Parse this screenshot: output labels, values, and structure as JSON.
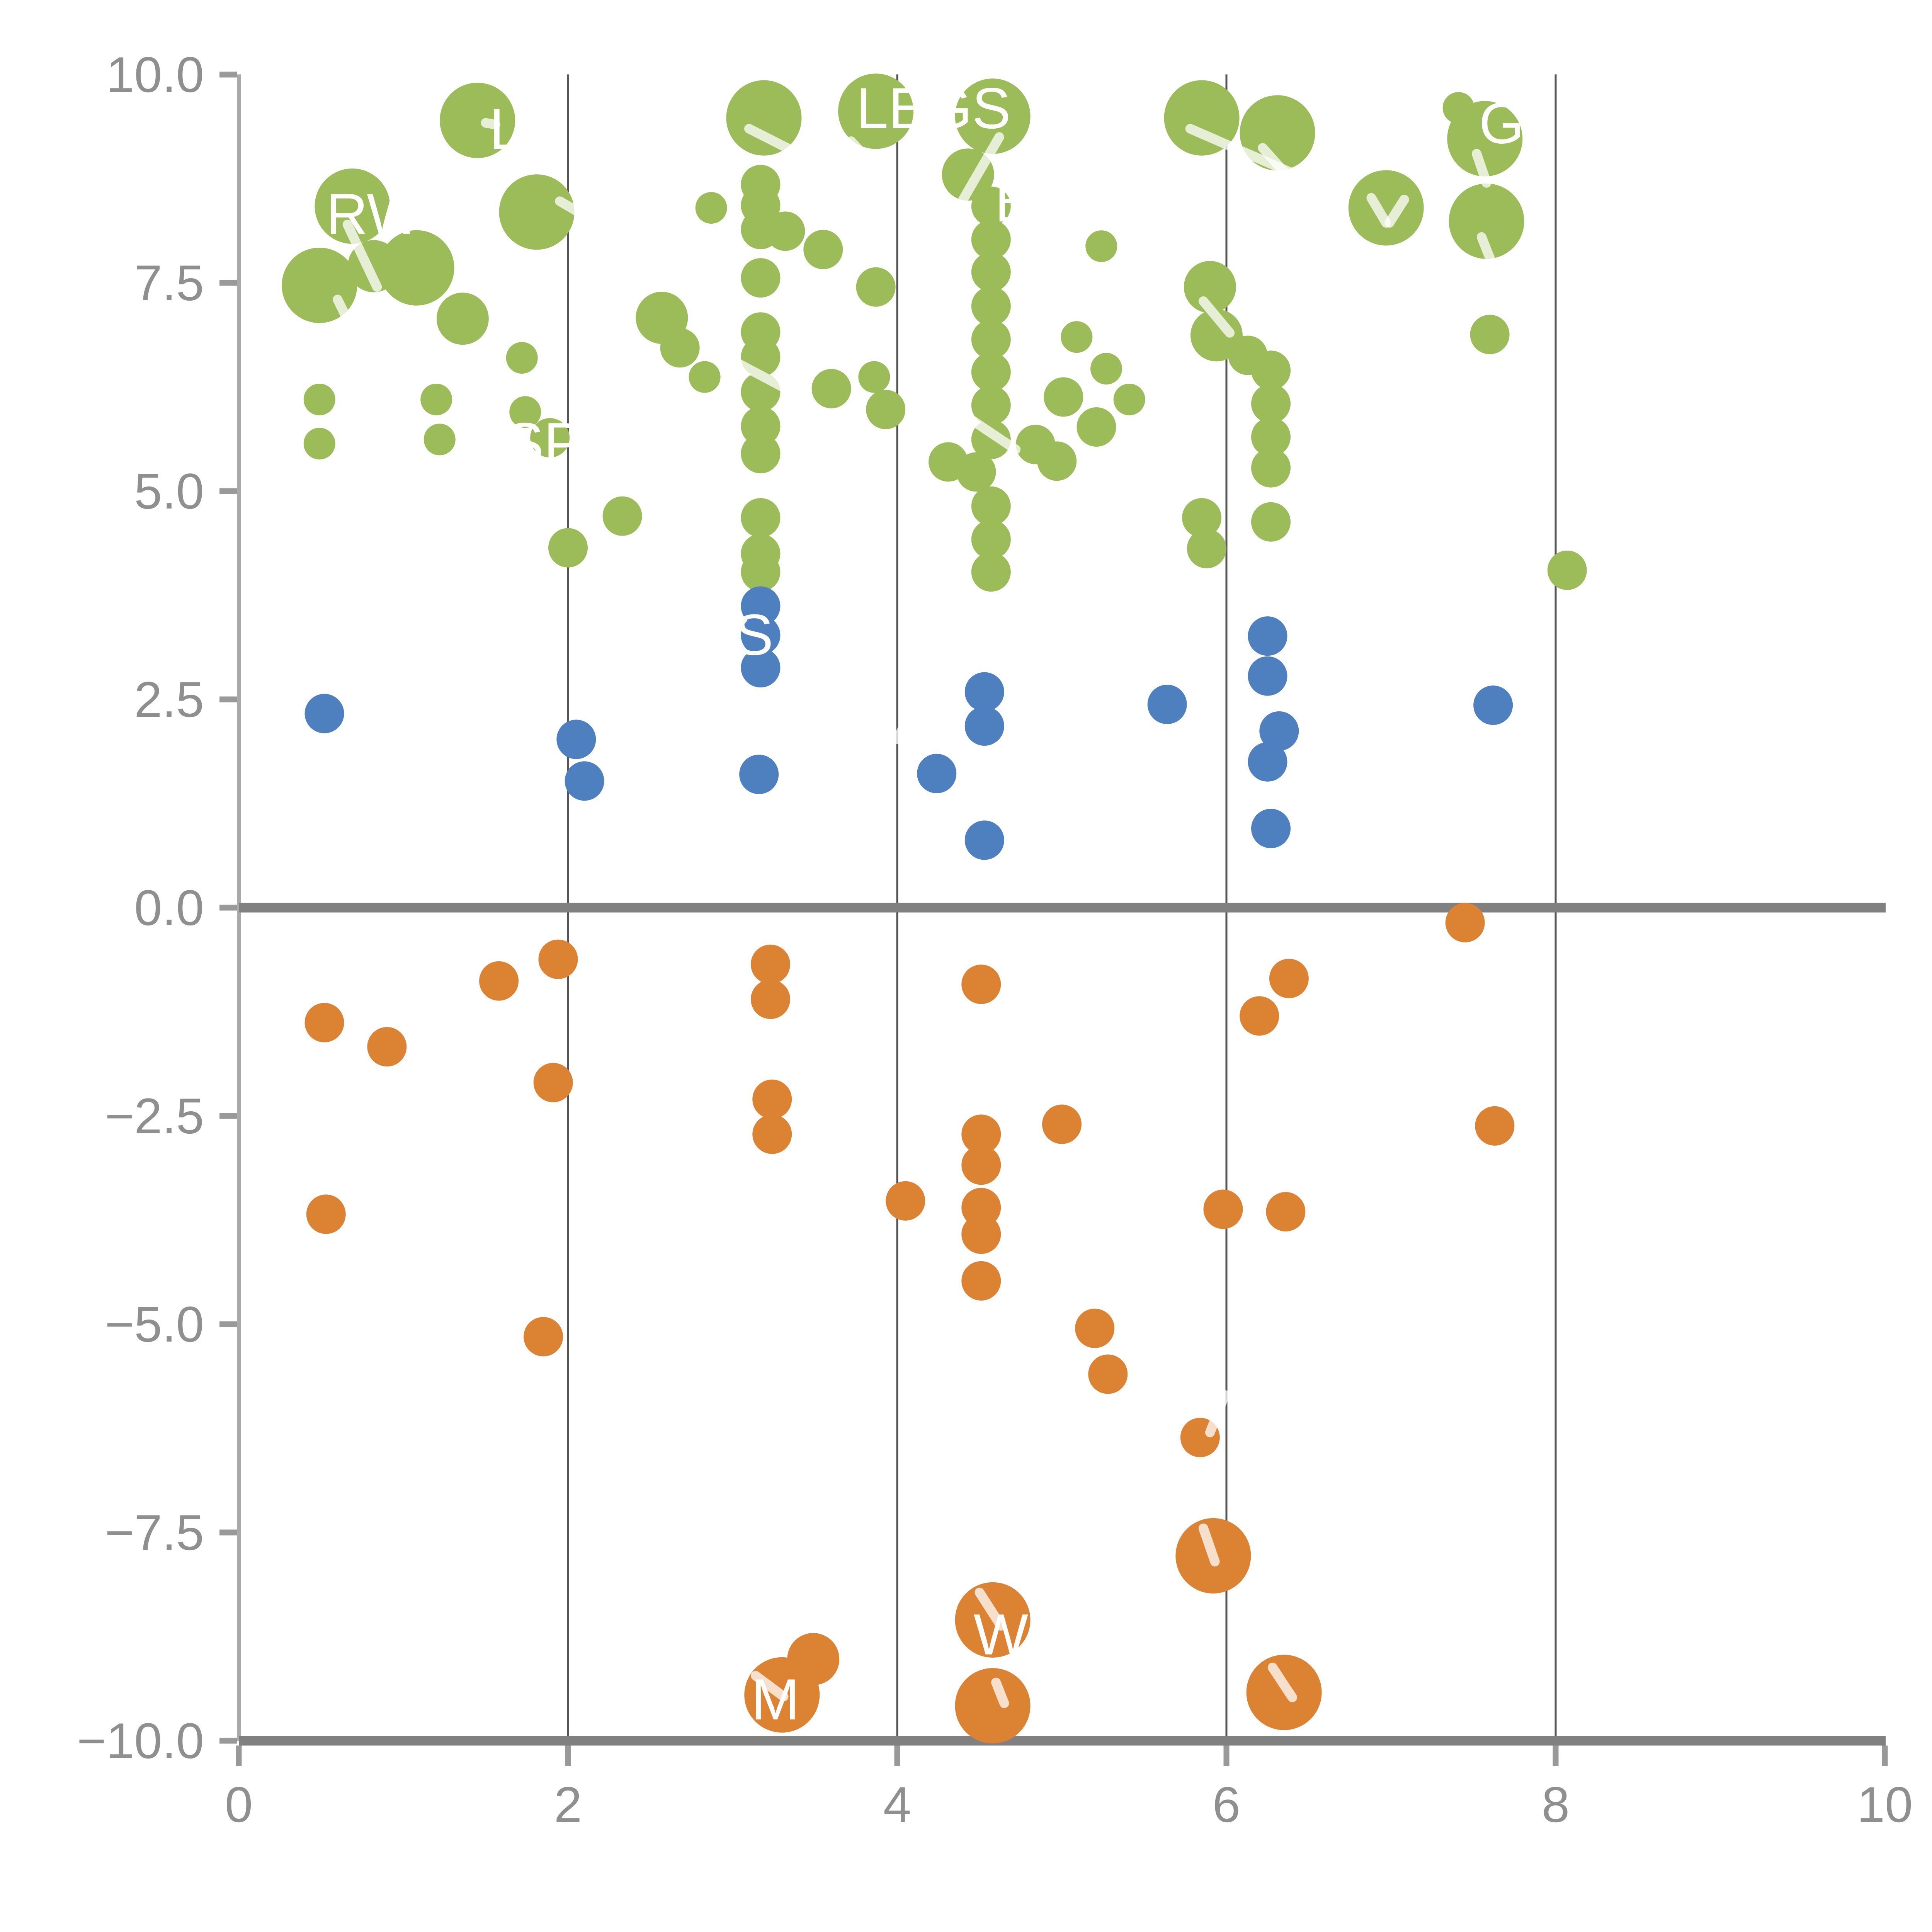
{
  "chart_data": {
    "type": "scatter",
    "title": "",
    "xlabel": "",
    "ylabel": "",
    "xlim": [
      0,
      10
    ],
    "ylim": [
      -10,
      10
    ],
    "x_ticks": [
      "0",
      "2",
      "4",
      "6",
      "8",
      "10"
    ],
    "x_tick_values": [
      0,
      2,
      4,
      6,
      8,
      10
    ],
    "y_ticks": [
      "10.0",
      "7.5",
      "5.0",
      "2.5",
      "0.0",
      "−2.5",
      "−5.0",
      "−7.5",
      "−10.0"
    ],
    "y_tick_values": [
      10.0,
      7.5,
      5.0,
      2.5,
      0.0,
      -2.5,
      -5.0,
      -7.5,
      -10.0
    ],
    "grid_x_values": [
      2,
      4,
      6,
      8
    ],
    "zero_line_y": 0,
    "legend_position": "none",
    "marker_radius": {
      "s": 8.2,
      "m": 10.2,
      "l": 13.5,
      "xl": 19.5
    },
    "series": [
      {
        "name": "green",
        "color": "#9CBB59",
        "points": [
          [
            1.45,
            9.45,
            "xl"
          ],
          [
            3.19,
            9.48,
            "xl"
          ],
          [
            3.87,
            9.56,
            "xl"
          ],
          [
            4.58,
            9.5,
            "xl"
          ],
          [
            5.85,
            9.48,
            "xl"
          ],
          [
            6.31,
            9.3,
            "xl"
          ],
          [
            7.41,
            9.6,
            "s"
          ],
          [
            7.57,
            9.23,
            "xl"
          ],
          [
            0.69,
            8.42,
            "xl"
          ],
          [
            1.81,
            8.35,
            "xl"
          ],
          [
            2.87,
            8.4,
            "s"
          ],
          [
            3.32,
            8.12,
            "m"
          ],
          [
            3.55,
            7.9,
            "m"
          ],
          [
            4.43,
            8.8,
            "l"
          ],
          [
            5.24,
            7.94,
            "s"
          ],
          [
            6.97,
            8.4,
            "xl"
          ],
          [
            7.58,
            8.24,
            "xl"
          ],
          [
            0.49,
            7.47,
            "xl"
          ],
          [
            0.82,
            7.7,
            "l"
          ],
          [
            1.08,
            7.68,
            "xl"
          ],
          [
            1.36,
            7.07,
            "l"
          ],
          [
            2.57,
            7.08,
            "l"
          ],
          [
            2.68,
            6.72,
            "m"
          ],
          [
            3.87,
            7.45,
            "m"
          ],
          [
            5.9,
            7.45,
            "l"
          ],
          [
            5.94,
            6.87,
            "l"
          ],
          [
            6.13,
            6.63,
            "m"
          ],
          [
            7.6,
            6.88,
            "m"
          ],
          [
            1.72,
            6.6,
            "s"
          ],
          [
            5.09,
            6.85,
            "s"
          ],
          [
            5.27,
            6.47,
            "s"
          ],
          [
            0.49,
            6.1,
            "s"
          ],
          [
            1.2,
            6.1,
            "s"
          ],
          [
            0.49,
            5.57,
            "s"
          ],
          [
            1.22,
            5.62,
            "s"
          ],
          [
            1.74,
            5.95,
            "s"
          ],
          [
            1.89,
            5.64,
            "m"
          ],
          [
            2.83,
            6.37,
            "s"
          ],
          [
            3.6,
            6.23,
            "m"
          ],
          [
            3.86,
            6.37,
            "s"
          ],
          [
            3.93,
            5.98,
            "m"
          ],
          [
            5.01,
            6.13,
            "m"
          ],
          [
            5.21,
            5.77,
            "m"
          ],
          [
            5.41,
            6.1,
            "s"
          ],
          [
            3.17,
            8.68,
            "m"
          ],
          [
            3.17,
            8.43,
            "m"
          ],
          [
            3.17,
            8.14,
            "m"
          ],
          [
            3.17,
            7.56,
            "m"
          ],
          [
            3.17,
            6.91,
            "m"
          ],
          [
            3.17,
            6.61,
            "m"
          ],
          [
            3.17,
            6.19,
            "m"
          ],
          [
            3.17,
            5.78,
            "m"
          ],
          [
            3.17,
            5.45,
            "m"
          ],
          [
            3.17,
            4.68,
            "m"
          ],
          [
            3.17,
            4.25,
            "m"
          ],
          [
            3.17,
            4.03,
            "m"
          ],
          [
            4.57,
            8.42,
            "m"
          ],
          [
            4.57,
            8.02,
            "m"
          ],
          [
            4.57,
            7.63,
            "m"
          ],
          [
            4.57,
            7.22,
            "m"
          ],
          [
            4.57,
            6.82,
            "m"
          ],
          [
            4.57,
            6.43,
            "m"
          ],
          [
            4.57,
            6.03,
            "m"
          ],
          [
            4.57,
            5.62,
            "m"
          ],
          [
            4.48,
            5.23,
            "m"
          ],
          [
            4.57,
            4.82,
            "m"
          ],
          [
            4.57,
            4.42,
            "m"
          ],
          [
            4.57,
            4.03,
            "m"
          ],
          [
            4.31,
            5.35,
            "m"
          ],
          [
            4.84,
            5.56,
            "m"
          ],
          [
            4.97,
            5.36,
            "m"
          ],
          [
            6.27,
            6.45,
            "m"
          ],
          [
            6.27,
            6.05,
            "m"
          ],
          [
            6.27,
            5.65,
            "m"
          ],
          [
            6.27,
            5.28,
            "m"
          ],
          [
            6.27,
            4.63,
            "m"
          ],
          [
            5.85,
            4.68,
            "m"
          ],
          [
            5.88,
            4.31,
            "m"
          ],
          [
            2.0,
            4.32,
            "m"
          ],
          [
            2.33,
            4.7,
            "m"
          ],
          [
            8.07,
            4.05,
            "m"
          ]
        ]
      },
      {
        "name": "blue",
        "color": "#4E7FBE",
        "points": [
          [
            0.52,
            2.33,
            "m"
          ],
          [
            2.05,
            2.02,
            "m"
          ],
          [
            2.1,
            1.52,
            "m"
          ],
          [
            3.17,
            3.62,
            "m"
          ],
          [
            3.17,
            3.27,
            "m"
          ],
          [
            3.17,
            2.88,
            "m"
          ],
          [
            3.16,
            1.6,
            "m"
          ],
          [
            4.53,
            2.59,
            "m"
          ],
          [
            4.53,
            2.18,
            "m"
          ],
          [
            4.24,
            1.61,
            "m"
          ],
          [
            4.53,
            0.81,
            "m"
          ],
          [
            5.64,
            2.44,
            "m"
          ],
          [
            6.25,
            3.26,
            "m"
          ],
          [
            6.25,
            2.78,
            "m"
          ],
          [
            6.32,
            2.12,
            "m"
          ],
          [
            6.25,
            1.75,
            "m"
          ],
          [
            6.27,
            0.95,
            "m"
          ],
          [
            7.62,
            2.43,
            "m"
          ]
        ]
      },
      {
        "name": "orange",
        "color": "#DB8332",
        "points": [
          [
            0.52,
            -1.38,
            "m"
          ],
          [
            0.9,
            -1.67,
            "m"
          ],
          [
            1.58,
            -0.88,
            "m"
          ],
          [
            1.94,
            -0.62,
            "m"
          ],
          [
            1.91,
            -2.1,
            "m"
          ],
          [
            0.53,
            -3.68,
            "m"
          ],
          [
            1.85,
            -5.15,
            "m"
          ],
          [
            3.23,
            -0.68,
            "m"
          ],
          [
            3.23,
            -1.1,
            "m"
          ],
          [
            3.24,
            -2.3,
            "m"
          ],
          [
            3.24,
            -2.72,
            "m"
          ],
          [
            4.05,
            -3.52,
            "m"
          ],
          [
            4.51,
            -0.92,
            "m"
          ],
          [
            4.51,
            -2.72,
            "m"
          ],
          [
            4.51,
            -3.09,
            "m"
          ],
          [
            4.51,
            -3.6,
            "m"
          ],
          [
            4.51,
            -3.92,
            "m"
          ],
          [
            4.51,
            -4.48,
            "m"
          ],
          [
            5.0,
            -2.6,
            "m"
          ],
          [
            5.2,
            -5.05,
            "m"
          ],
          [
            5.28,
            -5.6,
            "m"
          ],
          [
            5.84,
            -6.36,
            "m"
          ],
          [
            5.98,
            -3.62,
            "m"
          ],
          [
            6.36,
            -3.65,
            "m"
          ],
          [
            6.2,
            -1.3,
            "m"
          ],
          [
            6.38,
            -0.85,
            "m"
          ],
          [
            7.45,
            -0.18,
            "m"
          ],
          [
            7.63,
            -2.62,
            "m"
          ],
          [
            5.92,
            -7.78,
            "xl"
          ],
          [
            6.35,
            -9.42,
            "xl"
          ],
          [
            4.58,
            -8.55,
            "xl"
          ],
          [
            4.58,
            -9.58,
            "xl"
          ],
          [
            3.3,
            -9.45,
            "xl"
          ],
          [
            3.49,
            -9.02,
            "l"
          ]
        ]
      }
    ],
    "point_labels": [
      {
        "text": "L",
        "x": 1.62,
        "y": 9.35
      },
      {
        "text": "LEGS",
        "x": 4.22,
        "y": 9.6
      },
      {
        "text": "GI",
        "x": 7.72,
        "y": 9.42
      },
      {
        "text": "RW",
        "x": 0.82,
        "y": 8.33
      },
      {
        "text": "E",
        "x": 4.71,
        "y": 8.48
      },
      {
        "text": "SPE",
        "x": 1.97,
        "y": 5.58
      },
      {
        "text": "S",
        "x": 3.13,
        "y": 3.28
      },
      {
        "text": "M",
        "x": 3.26,
        "y": -9.5
      },
      {
        "text": "W",
        "x": 4.63,
        "y": -8.72
      }
    ],
    "leader_lines": [
      [
        1.5,
        9.42,
        1.56,
        9.4
      ],
      [
        3.1,
        9.35,
        3.45,
        9.0
      ],
      [
        3.72,
        9.2,
        3.95,
        8.7
      ],
      [
        4.62,
        9.25,
        4.4,
        8.5
      ],
      [
        5.78,
        9.35,
        6.42,
        8.8
      ],
      [
        6.22,
        9.12,
        6.42,
        8.68
      ],
      [
        1.95,
        8.48,
        2.35,
        8.02
      ],
      [
        0.66,
        8.2,
        0.84,
        7.45
      ],
      [
        0.6,
        7.3,
        0.7,
        6.9
      ],
      [
        6.88,
        8.52,
        6.97,
        8.22
      ],
      [
        6.99,
        8.22,
        7.08,
        8.5
      ],
      [
        7.52,
        9.05,
        7.58,
        8.7
      ],
      [
        7.55,
        8.05,
        7.62,
        7.7
      ],
      [
        5.86,
        7.28,
        6.02,
        6.9
      ],
      [
        2.95,
        6.62,
        3.4,
        6.15
      ],
      [
        4.38,
        5.95,
        4.72,
        5.5
      ],
      [
        4.18,
        2.72,
        4.0,
        2.02
      ],
      [
        5.99,
        -5.85,
        5.9,
        -6.3
      ],
      [
        5.86,
        -7.45,
        5.93,
        -7.85
      ],
      [
        4.5,
        -8.22,
        4.63,
        -8.62
      ],
      [
        4.6,
        -9.3,
        4.65,
        -9.55
      ],
      [
        3.14,
        -9.22,
        3.31,
        -9.47
      ],
      [
        6.28,
        -9.12,
        6.4,
        -9.48
      ]
    ],
    "style": {
      "grid_color": "#555555",
      "spine_color": "#aaaaaa",
      "axis_line_color": "#808080",
      "tick_color": "#999999",
      "tick_label_color": "#8f8f8f",
      "leader_line_color": "rgba(255,255,255,0.75)",
      "point_label_color": "#ffffff",
      "background": "#ffffff"
    }
  }
}
